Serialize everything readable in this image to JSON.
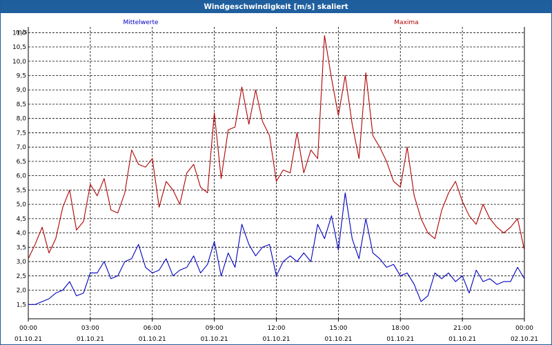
{
  "window": {
    "title": "Windgeschwindigkeit [m/s] skaliert"
  },
  "colors": {
    "title_bar": "#1f5f9e",
    "mean": "#0000c0",
    "max": "#b00000",
    "grid": "#000000"
  },
  "chart_data": {
    "type": "line",
    "title": "Windgeschwindigkeit [m/s] skaliert",
    "ylabel": "m/s",
    "xlabel": "",
    "ylim": [
      1.0,
      11.2
    ],
    "xlim": [
      0,
      24
    ],
    "grid": true,
    "yticks": [
      "1,5",
      "2,0",
      "2,5",
      "3,0",
      "3,5",
      "4,0",
      "4,5",
      "5,0",
      "5,5",
      "6,0",
      "6,5",
      "7,0",
      "7,5",
      "8,0",
      "8,5",
      "9,0",
      "9,5",
      "10,0",
      "10,5",
      "11,0"
    ],
    "xticks": [
      {
        "time": "00:00",
        "date": "01.10.21"
      },
      {
        "time": "03:00",
        "date": "01.10.21"
      },
      {
        "time": "06:00",
        "date": "01.10.21"
      },
      {
        "time": "09:00",
        "date": "01.10.21"
      },
      {
        "time": "12:00",
        "date": "01.10.21"
      },
      {
        "time": "15:00",
        "date": "01.10.21"
      },
      {
        "time": "18:00",
        "date": "01.10.21"
      },
      {
        "time": "21:00",
        "date": "01.10.21"
      },
      {
        "time": "00:00",
        "date": "02.10.21"
      }
    ],
    "series": [
      {
        "name": "Mittelwerte",
        "color": "#0000c0",
        "x": [
          0,
          0.33,
          0.67,
          1.0,
          1.33,
          1.67,
          2.0,
          2.33,
          2.67,
          3.0,
          3.33,
          3.67,
          4.0,
          4.33,
          4.67,
          5.0,
          5.33,
          5.67,
          6.0,
          6.33,
          6.67,
          7.0,
          7.33,
          7.67,
          8.0,
          8.33,
          8.67,
          9.0,
          9.33,
          9.67,
          10.0,
          10.33,
          10.67,
          11.0,
          11.33,
          11.67,
          12.0,
          12.33,
          12.67,
          13.0,
          13.33,
          13.67,
          14.0,
          14.33,
          14.67,
          15.0,
          15.33,
          15.67,
          16.0,
          16.33,
          16.67,
          17.0,
          17.33,
          17.67,
          18.0,
          18.33,
          18.67,
          19.0,
          19.33,
          19.67,
          20.0,
          20.33,
          20.67,
          21.0,
          21.33,
          21.67,
          22.0,
          22.33,
          22.67,
          23.0,
          23.33,
          23.67,
          24.0
        ],
        "y": [
          1.5,
          1.5,
          1.6,
          1.7,
          1.9,
          2.0,
          2.3,
          1.8,
          1.9,
          2.6,
          2.6,
          3.0,
          2.4,
          2.5,
          3.0,
          3.1,
          3.6,
          2.8,
          2.6,
          2.7,
          3.1,
          2.5,
          2.7,
          2.8,
          3.2,
          2.6,
          2.9,
          3.7,
          2.5,
          3.3,
          2.8,
          4.3,
          3.6,
          3.2,
          3.5,
          3.6,
          2.5,
          3.0,
          3.2,
          3.0,
          3.3,
          3.0,
          4.3,
          3.8,
          4.6,
          3.4,
          5.4,
          3.8,
          3.1,
          4.5,
          3.3,
          3.1,
          2.8,
          2.9,
          2.5,
          2.6,
          2.2,
          1.6,
          1.8,
          2.6,
          2.4,
          2.6,
          2.3,
          2.5,
          1.9,
          2.7,
          2.3,
          2.4,
          2.2,
          2.3,
          2.3,
          2.8,
          2.4
        ]
      },
      {
        "name": "Maxima",
        "color": "#b00000",
        "x": [
          0,
          0.33,
          0.67,
          1.0,
          1.33,
          1.67,
          2.0,
          2.33,
          2.67,
          3.0,
          3.33,
          3.67,
          4.0,
          4.33,
          4.67,
          5.0,
          5.33,
          5.67,
          6.0,
          6.33,
          6.67,
          7.0,
          7.33,
          7.67,
          8.0,
          8.33,
          8.67,
          9.0,
          9.33,
          9.67,
          10.0,
          10.33,
          10.67,
          11.0,
          11.33,
          11.67,
          12.0,
          12.33,
          12.67,
          13.0,
          13.33,
          13.67,
          14.0,
          14.33,
          14.67,
          15.0,
          15.33,
          15.67,
          16.0,
          16.33,
          16.67,
          17.0,
          17.33,
          17.67,
          18.0,
          18.33,
          18.67,
          19.0,
          19.33,
          19.67,
          20.0,
          20.33,
          20.67,
          21.0,
          21.33,
          21.67,
          22.0,
          22.33,
          22.67,
          23.0,
          23.33,
          23.67,
          24.0
        ],
        "y": [
          3.1,
          3.6,
          4.2,
          3.3,
          3.8,
          4.9,
          5.5,
          4.1,
          4.4,
          5.7,
          5.3,
          5.9,
          4.8,
          4.7,
          5.4,
          6.9,
          6.4,
          6.3,
          6.6,
          4.9,
          5.8,
          5.5,
          5.0,
          6.1,
          6.4,
          5.6,
          5.4,
          8.2,
          5.9,
          7.6,
          7.7,
          9.1,
          7.8,
          9.0,
          7.9,
          7.4,
          5.8,
          6.2,
          6.1,
          7.5,
          6.1,
          6.9,
          6.6,
          10.9,
          9.4,
          8.1,
          9.5,
          7.8,
          6.6,
          9.6,
          7.4,
          7.0,
          6.5,
          5.8,
          5.6,
          7.0,
          5.3,
          4.5,
          4.0,
          3.8,
          4.8,
          5.4,
          5.8,
          5.1,
          4.6,
          4.3,
          5.0,
          4.5,
          4.2,
          4.0,
          4.2,
          4.5,
          3.4
        ]
      }
    ]
  }
}
